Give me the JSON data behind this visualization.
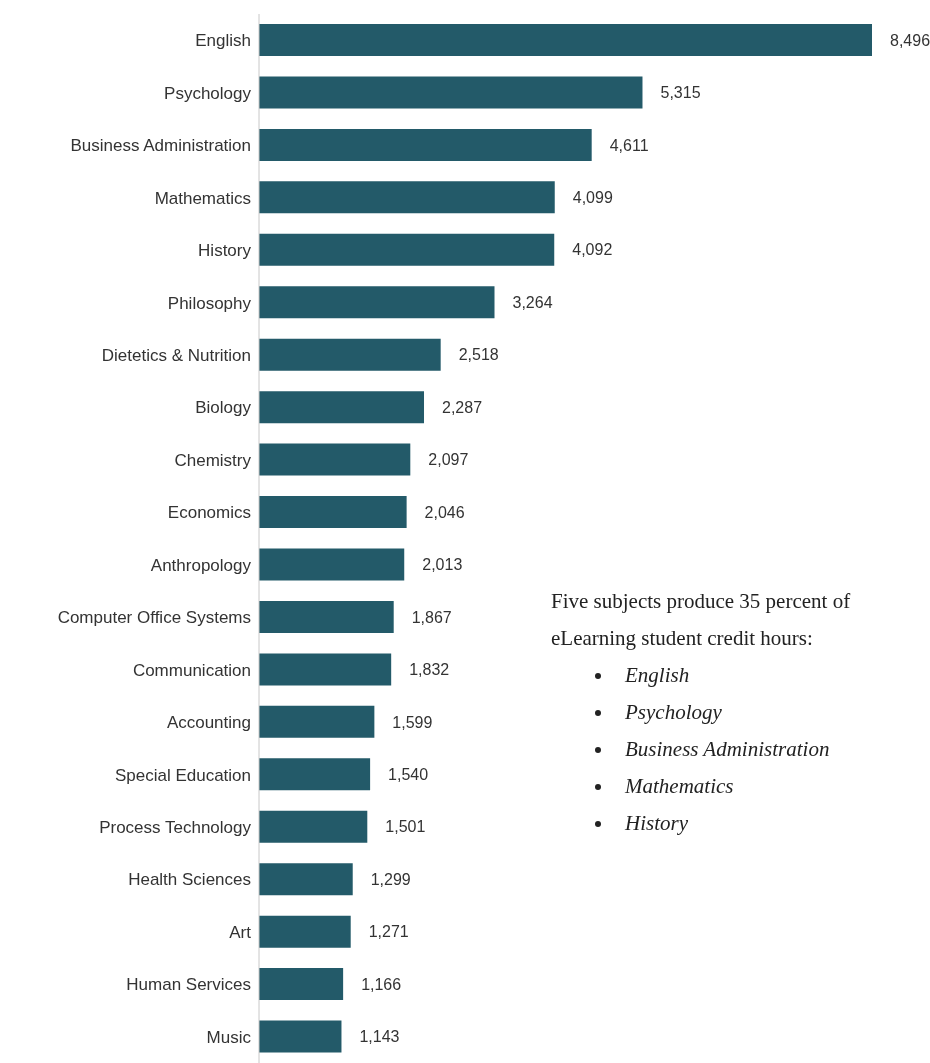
{
  "chart_data": {
    "type": "bar",
    "orientation": "horizontal",
    "categories": [
      "English",
      "Psychology",
      "Business Administration",
      "Mathematics",
      "History",
      "Philosophy",
      "Dietetics & Nutrition",
      "Biology",
      "Chemistry",
      "Economics",
      "Anthropology",
      "Computer Office Systems",
      "Communication",
      "Accounting",
      "Special Education",
      "Process Technology",
      "Health Sciences",
      "Art",
      "Human Services",
      "Music"
    ],
    "values": [
      8496,
      5315,
      4611,
      4099,
      4092,
      3264,
      2518,
      2287,
      2097,
      2046,
      2013,
      1867,
      1832,
      1599,
      1540,
      1501,
      1299,
      1271,
      1166,
      1143
    ],
    "value_labels": [
      "8,496",
      "5,315",
      "4,611",
      "4,099",
      "4,092",
      "3,264",
      "2,518",
      "2,287",
      "2,097",
      "2,046",
      "2,013",
      "1,867",
      "1,832",
      "1,599",
      "1,540",
      "1,501",
      "1,299",
      "1,271",
      "1,166",
      "1,143"
    ],
    "color": "#235a69",
    "annotations": [
      "Five subjects produce 35 percent of eLearning student credit hours:",
      "English",
      "Psychology",
      "Business Administration",
      "Mathematics",
      "History"
    ]
  }
}
